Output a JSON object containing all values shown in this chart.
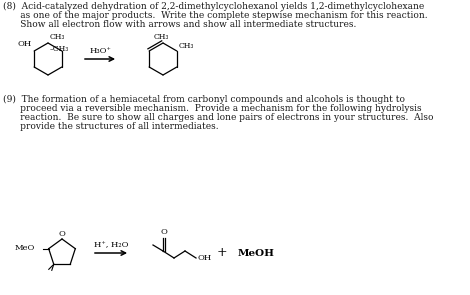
{
  "bg_color": "#ffffff",
  "text_color": "#1a1a1a",
  "q8_line1": "(8)  Acid-catalyzed dehydration of 2,2-dimethylcyclohexanol yields 1,2-dimethylcyclohexane",
  "q8_line2": "      as one of the major products.  Write the complete stepwise mechanism for this reaction.",
  "q8_line3": "      Show all electron flow with arrows and show all intermediate structures.",
  "q9_line1": "(9)  The formation of a hemiacetal from carbonyl compounds and alcohols is thought to",
  "q9_line2": "      proceed via a reversible mechanism.  Provide a mechanism for the following hydrolysis",
  "q9_line3": "      reaction.  Be sure to show all charges and lone pairs of electrons in your structures.  Also",
  "q9_line4": "      provide the structures of all intermediates.",
  "reagent1": "H₃O⁺",
  "reagent2": "H⁺, H₂O",
  "plus_sign": "+",
  "MeOH_label": "MeOH",
  "MeO_label": "MeO",
  "OH_label": "OH",
  "font_size_main": 6.5,
  "font_size_chem": 6.0,
  "font_size_small": 5.5
}
